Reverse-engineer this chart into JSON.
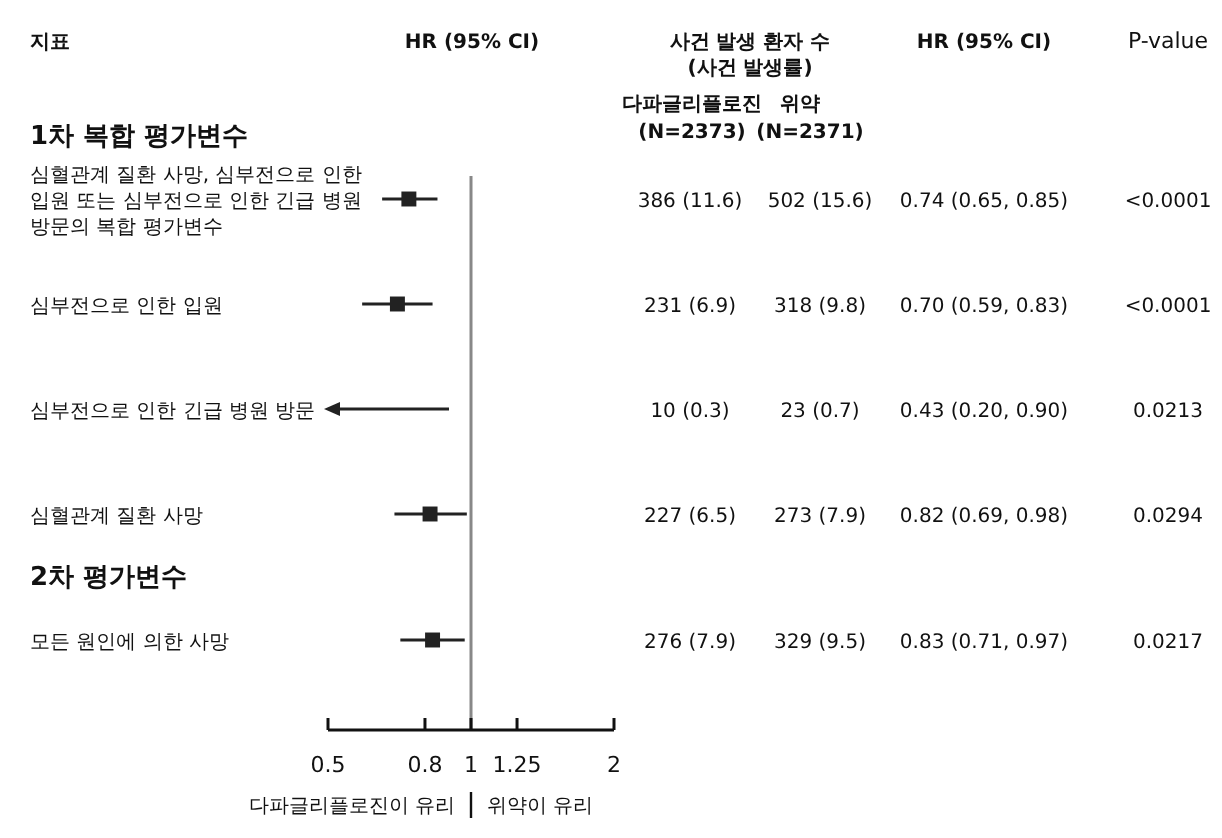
{
  "chart_data": {
    "type": "scatter",
    "orientation": "horizontal",
    "ylabel": "지표",
    "xlabel": "HR (95% CI)",
    "categories": [
      "1차 복합 평가변수",
      "심혈관계 질환 사망, 심부전으로 인한 입원 또는 심부전으로 인한 긴급 병원 방문의 복합 평가변수",
      "심부전으로 인한 입원",
      "심부전으로 인한 긴급 병원 방문",
      "심혈관계 질환 사망",
      "2차 평가변수",
      "모든 원인에 의한 사망"
    ],
    "values": [
      null,
      0.74,
      0.7,
      null,
      0.82,
      null,
      0.83
    ],
    "errors": [
      null,
      [
        0.65,
        0.85
      ],
      [
        0.59,
        0.83
      ],
      null,
      [
        0.69,
        0.98
      ],
      null,
      [
        0.71,
        0.97
      ]
    ],
    "value_labels": [
      null,
      "0.74 (0.65, 0.85)",
      "0.70 (0.59, 0.83)",
      "0.43 (0.20, 0.90)",
      "0.82 (0.69, 0.98)",
      null,
      "0.83 (0.71, 0.97)"
    ],
    "color": "#222222",
    "marker": "square",
    "log": "x",
    "xlim": [
      0.5,
      2
    ],
    "xticks": [
      0.5,
      0.8,
      1,
      1.25,
      2
    ],
    "ref_lines": [
      {
        "axis": "x",
        "value": 1,
        "color": "#888888"
      }
    ],
    "annotations": [
      "사건 발생 환자 수",
      "(사건 발생률)",
      "다파글리플로진",
      "(N=2373)",
      "위약",
      "(N=2371)",
      "HR (95% CI)",
      "P-value",
      "다파글리플로진이 유리",
      "위약이 유리",
      "386 (11.6)",
      "502 (15.6)",
      "<0.0001",
      "231 (6.9)",
      "318 (9.8)",
      "<0.0001",
      "10 (0.3)",
      "23 (0.7)",
      "0.0213",
      "227 (6.5)",
      "273 (7.9)",
      "0.0294",
      "276 (7.9)",
      "329 (9.5)",
      "0.0217"
    ]
  }
}
